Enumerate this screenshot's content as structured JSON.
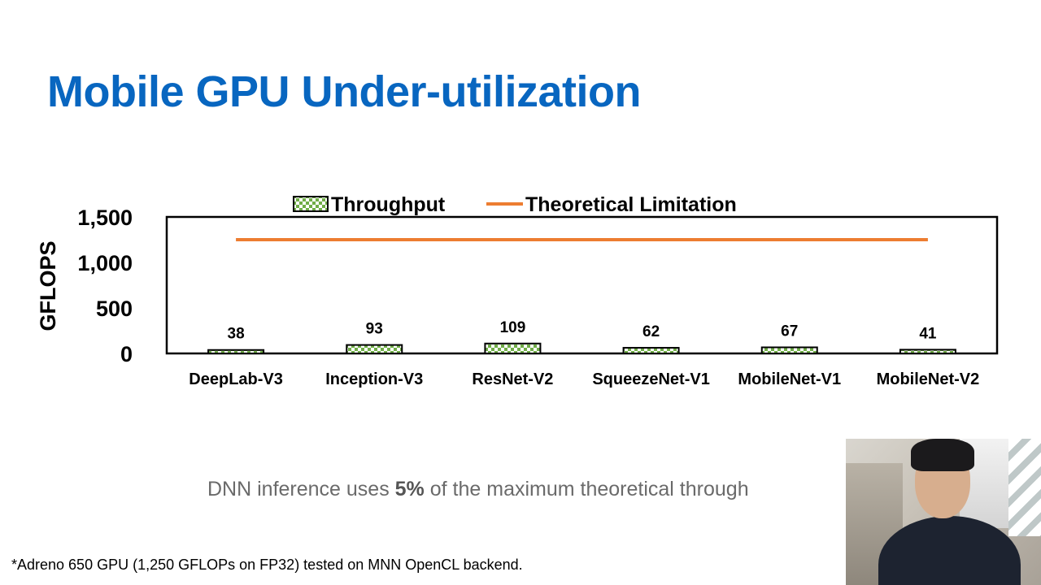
{
  "slide": {
    "title": "Mobile GPU Under-utilization",
    "caption_prefix": "DNN inference uses ",
    "caption_bold": "5%",
    "caption_suffix": " of the maximum theoretical through",
    "footnote": "*Adreno 650 GPU (1,250 GFLOPs on FP32) tested on MNN OpenCL backend."
  },
  "chart_data": {
    "type": "bar",
    "title": "",
    "xlabel": "",
    "ylabel": "GFLOPS",
    "ylim": [
      0,
      1500
    ],
    "yticks": [
      "0",
      "500",
      "1,000",
      "1,500"
    ],
    "ytick_values": [
      0,
      500,
      1000,
      1500
    ],
    "categories": [
      "DeepLab-V3",
      "Inception-V3",
      "ResNet-V2",
      "SqueezeNet-V1",
      "MobileNet-V1",
      "MobileNet-V2"
    ],
    "series": [
      {
        "name": "Throughput",
        "values": [
          38,
          93,
          109,
          62,
          67,
          41
        ],
        "color": "#70ad47",
        "pattern": "checkerboard"
      },
      {
        "name": "Theoretical Limitation",
        "values": [
          1250,
          1250,
          1250,
          1250,
          1250,
          1250
        ],
        "color": "#ed7d31",
        "style": "line"
      }
    ],
    "data_labels": [
      "38",
      "93",
      "109",
      "62",
      "67",
      "41"
    ],
    "legend": "top",
    "grid": false
  },
  "webcam": {
    "description_icon": "presenter-webcam"
  }
}
